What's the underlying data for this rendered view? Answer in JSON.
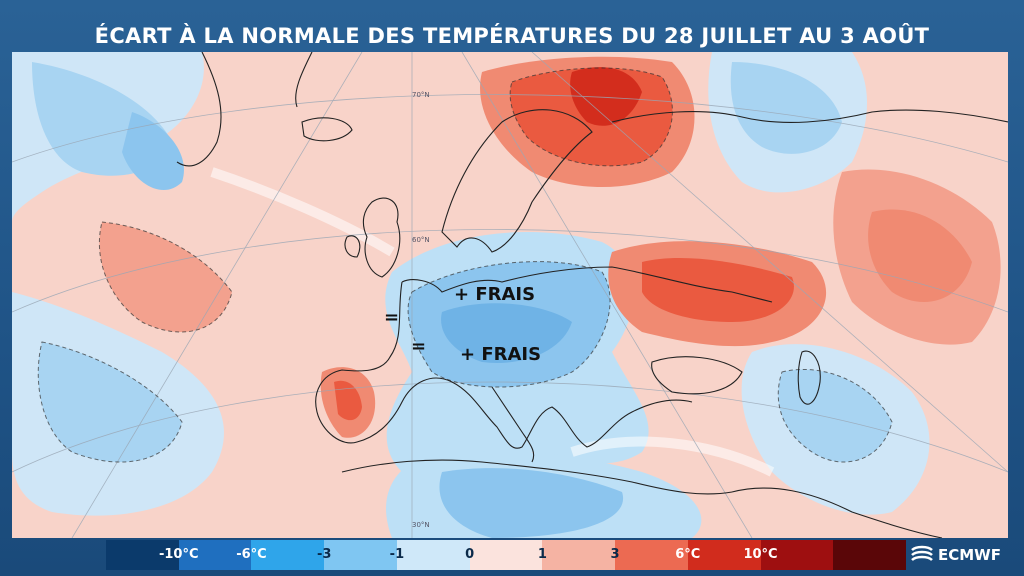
{
  "title": "ÉCART À LA NORMALE DES TEMPÉRATURES DU 28 JUILLET AU 3 AOÛT",
  "annotations": {
    "frais_1": "+ FRAIS",
    "frais_2": "+ FRAIS",
    "equal_1": "=",
    "equal_2": "="
  },
  "map_labels": {
    "grat_1": "70°N",
    "grat_2": "60°N",
    "grat_3": "30°N"
  },
  "legend": {
    "labels": [
      "-10°C",
      "-6°C",
      "-3",
      "-1",
      "0",
      "1",
      "3",
      "6°C",
      "10°C"
    ],
    "colors": [
      "#0b3a6b",
      "#1f6fbf",
      "#2fa5ea",
      "#7fc6f2",
      "#cfe8f9",
      "#fbe3dd",
      "#f5b3a3",
      "#ec6a52",
      "#d12c1d",
      "#9e0f10",
      "#5a0608"
    ]
  },
  "logo": {
    "text": "ECMWF"
  }
}
